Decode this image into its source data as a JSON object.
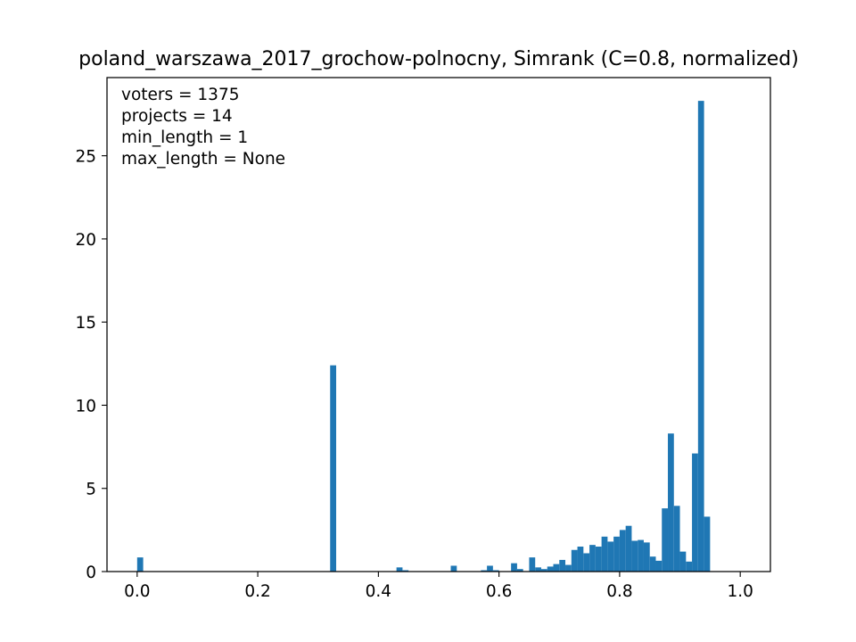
{
  "chart_data": {
    "type": "bar",
    "title": "poland_warszawa_2017_grochow-polnocny, Simrank (C=0.8, normalized)",
    "xlabel": "",
    "ylabel": "",
    "xlim": [
      -0.05,
      1.05
    ],
    "ylim": [
      0,
      29.7
    ],
    "x_ticks": [
      0.0,
      0.2,
      0.4,
      0.6,
      0.8,
      1.0
    ],
    "x_tick_labels": [
      "0.0",
      "0.2",
      "0.4",
      "0.6",
      "0.8",
      "1.0"
    ],
    "y_ticks": [
      0,
      5,
      10,
      15,
      20,
      25
    ],
    "y_tick_labels": [
      "0",
      "5",
      "10",
      "15",
      "20",
      "25"
    ],
    "bin_width": 0.01,
    "bar_color": "#1f77b4",
    "grid": false,
    "annotations": [
      "voters = 1375",
      "projects = 14",
      "min_length = 1",
      "max_length = None"
    ],
    "bins": [
      {
        "x": 0.0,
        "height": 0.85
      },
      {
        "x": 0.32,
        "height": 12.4
      },
      {
        "x": 0.43,
        "height": 0.25
      },
      {
        "x": 0.44,
        "height": 0.08
      },
      {
        "x": 0.52,
        "height": 0.35
      },
      {
        "x": 0.57,
        "height": 0.08
      },
      {
        "x": 0.58,
        "height": 0.35
      },
      {
        "x": 0.59,
        "height": 0.08
      },
      {
        "x": 0.62,
        "height": 0.5
      },
      {
        "x": 0.63,
        "height": 0.15
      },
      {
        "x": 0.65,
        "height": 0.85
      },
      {
        "x": 0.66,
        "height": 0.25
      },
      {
        "x": 0.67,
        "height": 0.15
      },
      {
        "x": 0.68,
        "height": 0.3
      },
      {
        "x": 0.69,
        "height": 0.45
      },
      {
        "x": 0.7,
        "height": 0.7
      },
      {
        "x": 0.71,
        "height": 0.4
      },
      {
        "x": 0.72,
        "height": 1.3
      },
      {
        "x": 0.73,
        "height": 1.5
      },
      {
        "x": 0.74,
        "height": 1.1
      },
      {
        "x": 0.75,
        "height": 1.6
      },
      {
        "x": 0.76,
        "height": 1.5
      },
      {
        "x": 0.77,
        "height": 2.1
      },
      {
        "x": 0.78,
        "height": 1.8
      },
      {
        "x": 0.79,
        "height": 2.1
      },
      {
        "x": 0.8,
        "height": 2.5
      },
      {
        "x": 0.81,
        "height": 2.75
      },
      {
        "x": 0.82,
        "height": 1.85
      },
      {
        "x": 0.83,
        "height": 1.9
      },
      {
        "x": 0.84,
        "height": 1.75
      },
      {
        "x": 0.85,
        "height": 0.9
      },
      {
        "x": 0.86,
        "height": 0.65
      },
      {
        "x": 0.87,
        "height": 3.8
      },
      {
        "x": 0.88,
        "height": 8.3
      },
      {
        "x": 0.89,
        "height": 3.95
      },
      {
        "x": 0.9,
        "height": 1.2
      },
      {
        "x": 0.91,
        "height": 0.6
      },
      {
        "x": 0.92,
        "height": 7.1
      },
      {
        "x": 0.93,
        "height": 28.3
      },
      {
        "x": 0.94,
        "height": 3.3
      }
    ]
  }
}
